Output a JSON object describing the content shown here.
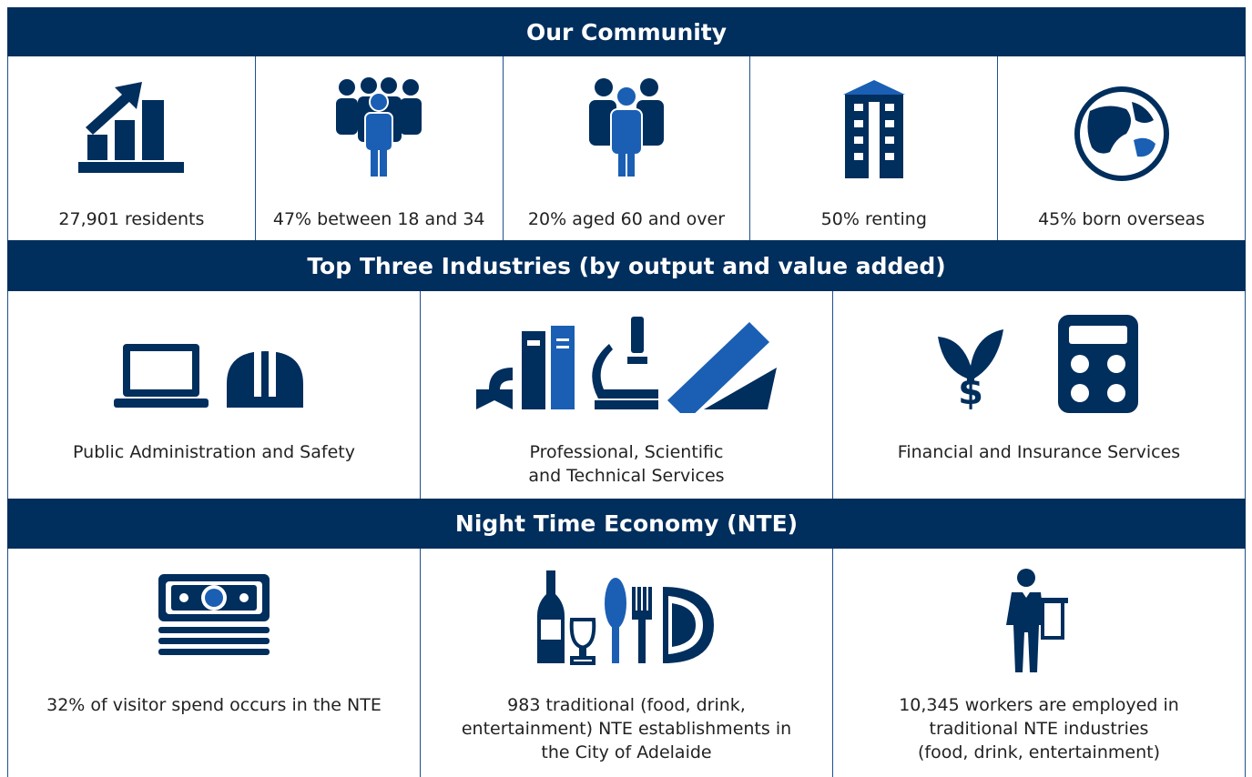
{
  "sections": [
    {
      "title": "Our Community",
      "items": [
        {
          "lines": [
            "27,901 residents"
          ]
        },
        {
          "lines": [
            "47% between 18 and 34"
          ]
        },
        {
          "lines": [
            "20% aged 60 and over"
          ]
        },
        {
          "lines": [
            "50% renting"
          ]
        },
        {
          "lines": [
            "45% born overseas"
          ]
        }
      ]
    },
    {
      "title": "Top Three Industries (by output and value added)",
      "items": [
        {
          "lines": [
            "Public Administration and Safety"
          ]
        },
        {
          "lines": [
            "Professional, Scientific",
            "and Technical Services"
          ]
        },
        {
          "lines": [
            "Financial and Insurance Services"
          ]
        }
      ]
    },
    {
      "title": "Night Time Economy (NTE)",
      "items": [
        {
          "lines": [
            "32% of visitor spend occurs in the NTE"
          ]
        },
        {
          "lines": [
            "983 traditional (food, drink,",
            "entertainment) NTE establishments in",
            "the City of Adelaide"
          ]
        },
        {
          "lines": [
            "10,345 workers are employed in",
            "traditional NTE industries",
            "(food, drink, entertainment)"
          ]
        }
      ]
    }
  ]
}
